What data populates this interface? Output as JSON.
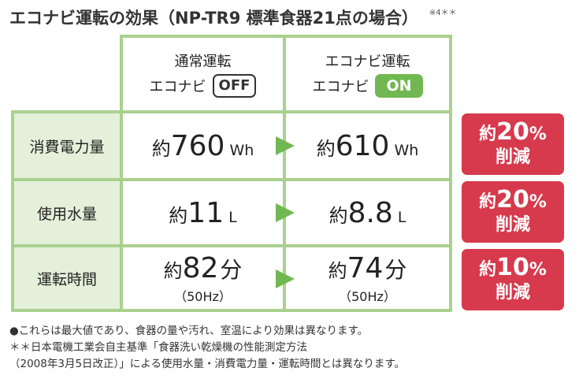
{
  "title": "エコナビ運転の効果（NP-TR9 標準食器21点の場合）",
  "title_note": "※4＊＊",
  "columns": {
    "normal": {
      "line1": "通常運転",
      "line2_label": "エコナビ",
      "badge": "OFF"
    },
    "econavi": {
      "line1": "エコナビ運転",
      "line2_label": "エコナビ",
      "badge": "ON"
    }
  },
  "rows": [
    {
      "label": "消費電力量",
      "normal": {
        "prefix": "約",
        "value": "760",
        "unit": "Wh",
        "sub": ""
      },
      "econavi": {
        "prefix": "約",
        "value": "610",
        "unit": "Wh",
        "sub": ""
      },
      "reduction": {
        "prefix": "約",
        "percent": "20",
        "symbol": "%",
        "word": "削減"
      }
    },
    {
      "label": "使用水量",
      "normal": {
        "prefix": "約",
        "value": "11",
        "unit": "L",
        "sub": ""
      },
      "econavi": {
        "prefix": "約",
        "value": "8.8",
        "unit": "L",
        "sub": ""
      },
      "reduction": {
        "prefix": "約",
        "percent": "20",
        "symbol": "%",
        "word": "削減"
      }
    },
    {
      "label": "運転時間",
      "normal": {
        "prefix": "約",
        "value": "82",
        "unit": "分",
        "sub": "（50Hz）"
      },
      "econavi": {
        "prefix": "約",
        "value": "74",
        "unit": "分",
        "sub": "（50Hz）"
      },
      "reduction": {
        "prefix": "約",
        "percent": "10",
        "symbol": "%",
        "word": "削減"
      }
    }
  ],
  "notes": [
    "●これらは最大値であり、食器の量や汚れ、室温により効果は異なります。",
    "＊＊日本電機工業会自主基準「食器洗い乾燥機の性能測定方法",
    "（2008年3月5日改正）」による使用水量・消費電力量・運転時間とは異なります。"
  ],
  "colors": {
    "grid_green": "#a9d18e",
    "row_head_bg": "#e4f0da",
    "arrow_green": "#72b852",
    "reduction_red": "#d63a4c"
  }
}
